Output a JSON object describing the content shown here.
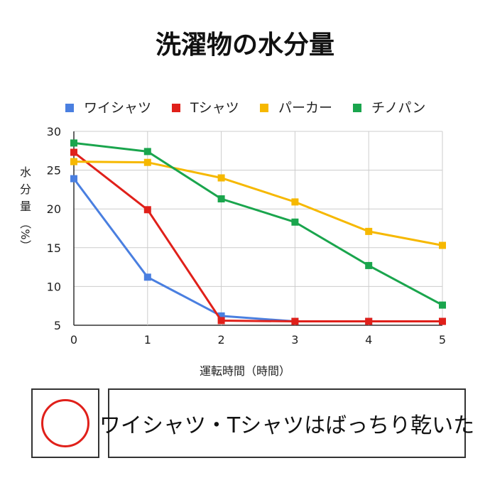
{
  "chart_data": {
    "type": "line",
    "title": "洗濯物の水分量",
    "xlabel": "運転時間（時間）",
    "ylabel": [
      "水",
      "分",
      "量",
      "（%）"
    ],
    "x": [
      0,
      1,
      2,
      3,
      4,
      5
    ],
    "xlim": [
      0,
      5
    ],
    "ylim": [
      5,
      30
    ],
    "yticks": [
      5,
      10,
      15,
      20,
      25,
      30
    ],
    "grid": true,
    "legend_position": "top",
    "series": [
      {
        "name": "ワイシャツ",
        "color": "#4a7fe0",
        "values": [
          23.9,
          11.2,
          6.2,
          5.5,
          5.5,
          5.5
        ]
      },
      {
        "name": "Tシャツ",
        "color": "#e0201a",
        "values": [
          27.3,
          19.9,
          5.6,
          5.5,
          5.5,
          5.5
        ]
      },
      {
        "name": "パーカー",
        "color": "#f6b800",
        "values": [
          26.1,
          26.0,
          24.0,
          20.9,
          17.1,
          15.3
        ]
      },
      {
        "name": "チノパン",
        "color": "#1aa54d",
        "values": [
          28.5,
          27.4,
          21.3,
          18.3,
          12.7,
          7.6
        ]
      }
    ]
  },
  "result": {
    "symbol": "circle-symbol",
    "caption": "ワイシャツ・Tシャツはばっちり乾いた"
  }
}
